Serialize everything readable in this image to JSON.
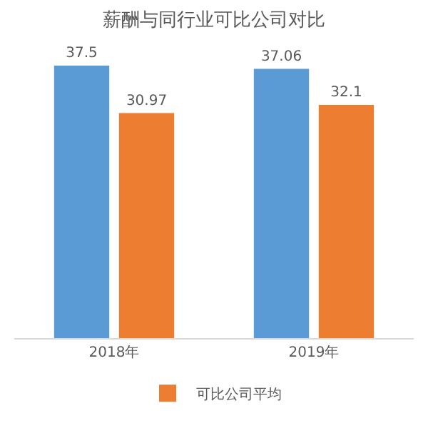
{
  "chart_data": {
    "type": "bar",
    "title": "薪酬与同行业可比公司对比",
    "categories": [
      "2018年",
      "2019年"
    ],
    "series": [
      {
        "color": "#5b9bd5",
        "values": [
          37.5,
          37.06
        ]
      },
      {
        "name": "可比公司平均",
        "color": "#ed7d31",
        "values": [
          30.97,
          32.1
        ]
      }
    ],
    "data_labels": true,
    "legend": "bottom",
    "grid": false
  }
}
